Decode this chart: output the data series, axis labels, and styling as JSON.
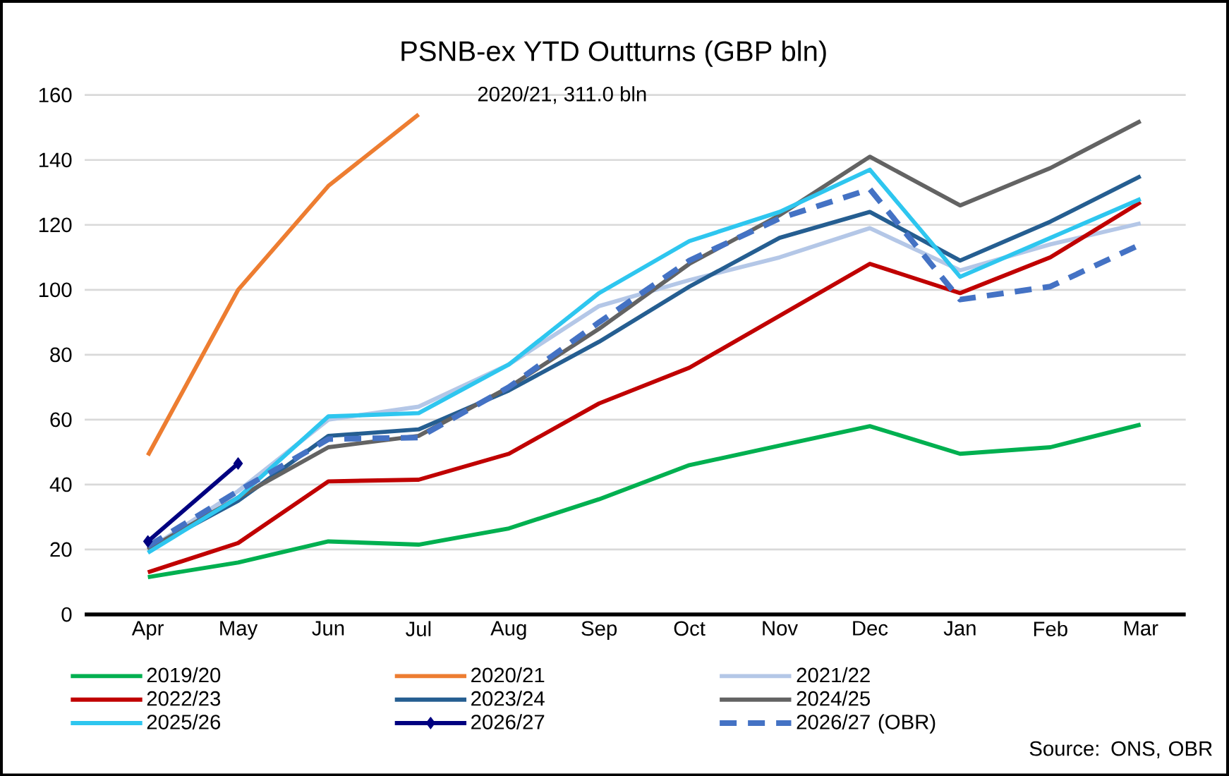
{
  "chart_data": {
    "type": "line",
    "title": "PSNB-ex YTD Outturns (GBP bln)",
    "categories": [
      "Apr",
      "May",
      "Jun",
      "Jul",
      "Aug",
      "Sep",
      "Oct",
      "Nov",
      "Dec",
      "Jan",
      "Feb",
      "Mar"
    ],
    "series": [
      {
        "name": "2019/20",
        "color": "#00b050",
        "values": [
          11.5,
          16,
          22.5,
          21.5,
          26.5,
          35.5,
          46,
          52,
          58,
          49.5,
          51.5,
          58.5
        ]
      },
      {
        "name": "2020/21",
        "color": "#ed7d31",
        "values": [
          49,
          100,
          132,
          154,
          null,
          null,
          null,
          null,
          null,
          null,
          null,
          null
        ]
      },
      {
        "name": "2021/22",
        "color": "#b4c7e7",
        "values": [
          20,
          38,
          60,
          64,
          77,
          95,
          103,
          110,
          119,
          106,
          114,
          120.5
        ]
      },
      {
        "name": "2022/23",
        "color": "#c00000",
        "values": [
          13,
          22,
          41,
          41.5,
          49.5,
          65,
          76,
          92,
          108,
          99,
          110,
          127
        ]
      },
      {
        "name": "2023/24",
        "color": "#255e91",
        "values": [
          20,
          35,
          55,
          57,
          69,
          84,
          101,
          116,
          124,
          109,
          121,
          135
        ]
      },
      {
        "name": "2024/25",
        "color": "#636363",
        "values": [
          20,
          36,
          51.5,
          55,
          70,
          88,
          108,
          123,
          141,
          126,
          137.5,
          152
        ]
      },
      {
        "name": "2025/26",
        "color": "#2ec6ef",
        "values": [
          19,
          36,
          61,
          62,
          77,
          99,
          115,
          124,
          137,
          104,
          116,
          128
        ]
      },
      {
        "name": "2026/27",
        "color": "#000080",
        "marker": "diamond",
        "values": [
          22.5,
          46.5,
          null,
          null,
          null,
          null,
          null,
          null,
          null,
          null,
          null,
          null
        ]
      },
      {
        "name": "2026/27 (OBR)",
        "color": "#4472c4",
        "line_style": "dashed",
        "values": [
          21,
          38,
          54,
          54.5,
          70,
          90,
          109,
          122,
          131,
          97,
          101,
          114
        ]
      }
    ],
    "ylim": [
      0,
      160
    ],
    "yticks": [
      0,
      20,
      40,
      60,
      80,
      100,
      120,
      140,
      160
    ],
    "grid": "y",
    "legend": "bottom",
    "annotations": [
      "2020/21, 311.0 bln",
      "Source: ONS, OBR"
    ]
  }
}
